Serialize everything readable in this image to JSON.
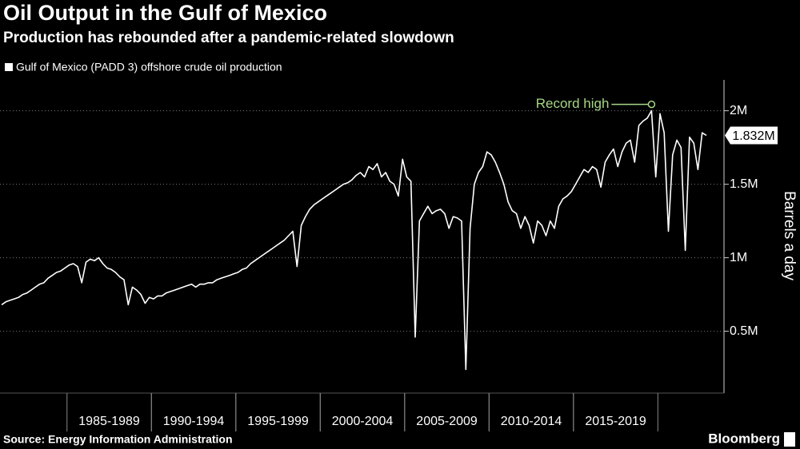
{
  "chart_data": {
    "type": "line",
    "title": "Oil Output in the Gulf of Mexico",
    "subtitle": "Production has rebounded after a pandemic-related slowdown",
    "y_axis_label": "Barrels a day",
    "source": "Source: Energy Information Administration",
    "brand": "Bloomberg",
    "annotations": [
      {
        "text": "Record high"
      }
    ],
    "ylim": [
      90000,
      2210000
    ],
    "yticks": [
      {
        "value": 500000,
        "label": "0.5M"
      },
      {
        "value": 1000000,
        "label": "1M"
      },
      {
        "value": 1500000,
        "label": "1.5M"
      },
      {
        "value": 2000000,
        "label": "2M"
      }
    ],
    "grid": true,
    "categories": [
      null,
      null,
      null,
      null,
      null,
      null,
      null,
      null,
      null,
      null,
      null,
      null,
      null,
      null,
      null,
      null,
      null,
      null,
      null,
      null,
      null,
      null,
      null,
      null,
      null,
      null,
      "1985-1989",
      null,
      null,
      null,
      null,
      null,
      null,
      null,
      null,
      null,
      null,
      null,
      null,
      null,
      null,
      null,
      null,
      null,
      null,
      null,
      "1990-1994",
      null,
      null,
      null,
      null,
      null,
      null,
      null,
      null,
      null,
      null,
      null,
      null,
      null,
      null,
      null,
      null,
      null,
      null,
      null,
      "1995-1999",
      null,
      null,
      null,
      null,
      null,
      null,
      null,
      null,
      null,
      null,
      null,
      null,
      null,
      null,
      null,
      null,
      null,
      null,
      null,
      "2000-2004",
      null,
      null,
      null,
      null,
      null,
      null,
      null,
      null,
      null,
      null,
      null,
      null,
      null,
      null,
      null,
      null,
      null,
      null,
      null,
      "2005-2009",
      null,
      null,
      null,
      null,
      null,
      null,
      null,
      null,
      null,
      null,
      null,
      null,
      null,
      null,
      null,
      null,
      null,
      null,
      null,
      "2010-2014",
      null,
      null,
      null,
      null,
      null,
      null,
      null,
      null,
      null,
      null,
      null,
      null,
      null,
      null,
      null,
      null,
      null,
      null,
      null,
      "2015-2019",
      null,
      null,
      null,
      null,
      null,
      null,
      null,
      null,
      null,
      null,
      null,
      null,
      null,
      null,
      null,
      null,
      null,
      null,
      null,
      null,
      null
    ],
    "series": [
      {
        "name": "Gulf of Mexico (PADD 3) offshore crude oil production",
        "color": "#ffffff",
        "end_label": "1.832M",
        "values": [
          680000,
          700000,
          710000,
          720000,
          730000,
          750000,
          760000,
          780000,
          800000,
          820000,
          830000,
          860000,
          880000,
          900000,
          910000,
          930000,
          950000,
          960000,
          940000,
          830000,
          970000,
          990000,
          980000,
          1000000,
          960000,
          930000,
          920000,
          900000,
          870000,
          850000,
          680000,
          800000,
          780000,
          750000,
          690000,
          730000,
          720000,
          740000,
          740000,
          760000,
          770000,
          780000,
          790000,
          800000,
          810000,
          820000,
          800000,
          820000,
          820000,
          830000,
          830000,
          850000,
          860000,
          870000,
          880000,
          890000,
          900000,
          920000,
          930000,
          960000,
          980000,
          1000000,
          1020000,
          1040000,
          1060000,
          1080000,
          1100000,
          1120000,
          1150000,
          1180000,
          940000,
          1220000,
          1280000,
          1330000,
          1360000,
          1380000,
          1400000,
          1420000,
          1440000,
          1460000,
          1480000,
          1500000,
          1510000,
          1530000,
          1560000,
          1580000,
          1550000,
          1620000,
          1600000,
          1640000,
          1550000,
          1580000,
          1520000,
          1500000,
          1420000,
          1670000,
          1550000,
          1520000,
          460000,
          1250000,
          1300000,
          1350000,
          1300000,
          1320000,
          1330000,
          1300000,
          1200000,
          1280000,
          1270000,
          1250000,
          240000,
          1200000,
          1500000,
          1580000,
          1620000,
          1720000,
          1700000,
          1650000,
          1580000,
          1500000,
          1380000,
          1320000,
          1300000,
          1200000,
          1280000,
          1220000,
          1100000,
          1250000,
          1220000,
          1150000,
          1250000,
          1200000,
          1350000,
          1400000,
          1420000,
          1450000,
          1500000,
          1550000,
          1600000,
          1580000,
          1620000,
          1600000,
          1480000,
          1650000,
          1700000,
          1740000,
          1620000,
          1720000,
          1780000,
          1800000,
          1650000,
          1900000,
          1930000,
          1950000,
          2000000,
          1550000,
          1980000,
          1850000,
          1180000,
          1700000,
          1800000,
          1750000,
          1050000,
          1820000,
          1780000,
          1600000,
          1850000,
          1832000
        ]
      }
    ]
  }
}
